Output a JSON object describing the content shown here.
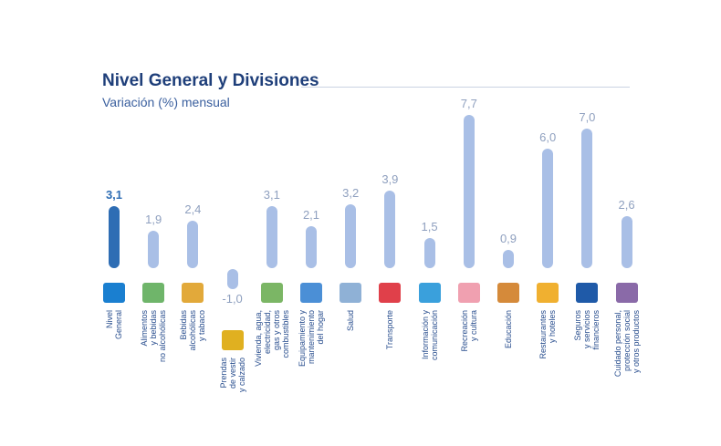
{
  "chart_data": {
    "type": "bar",
    "title": "Nivel General y Divisiones",
    "subtitle": "Variación (%) mensual",
    "xlabel": "",
    "ylabel": "",
    "ylim": [
      -1.5,
      8
    ],
    "grid": false,
    "categories": [
      "Nivel\nGeneral",
      "Alimentos\ny bebidas\nno alcohólicas",
      "Bebidas\nalcohólicas\ny tabaco",
      "Prendas\nde vestir\ny calzado",
      "Vivienda, agua,\nelectricidad,\ngas y otros\ncombustibles",
      "Equipamiento y\nmantenimiento\ndel hogar",
      "Salud",
      "Transporte",
      "Información y\ncomunicación",
      "Recreación\ny cultura",
      "Educación",
      "Restaurantes\ny hoteles",
      "Seguros\ny servicios\nfinancieros",
      "Cuidado personal,\nprotección social\ny otros productos"
    ],
    "values": [
      3.1,
      1.9,
      2.4,
      -1.0,
      3.1,
      2.1,
      3.2,
      3.9,
      1.5,
      7.7,
      0.9,
      6.0,
      7.0,
      2.6
    ],
    "value_labels": [
      "3,1",
      "1,9",
      "2,4",
      "-1,0",
      "3,1",
      "2,1",
      "3,2",
      "3,9",
      "1,5",
      "7,7",
      "0,9",
      "6,0",
      "7,0",
      "2,6"
    ],
    "icons": [
      "ipc-ba-logo-icon",
      "food-icon",
      "bottles-icon",
      "jacket-icon",
      "house-icon",
      "washing-machine-icon",
      "doctor-icon",
      "car-plane-icon",
      "computer-icon",
      "theater-masks-icon",
      "school-icon",
      "cutlery-icon",
      "bank-icon",
      "personal-care-icon"
    ],
    "icon_colors": [
      "#1a7fd0",
      "#6fb56a",
      "#e2a93a",
      "#e0b020",
      "#7bb665",
      "#4b8fd6",
      "#8fb1d6",
      "#e0404a",
      "#3aa0dc",
      "#f0a0b0",
      "#d58a3a",
      "#f0b030",
      "#1f5aa8",
      "#8a6aa8"
    ],
    "colors": {
      "highlight": "#2e6db4",
      "bar": "#a9bfe6"
    }
  }
}
